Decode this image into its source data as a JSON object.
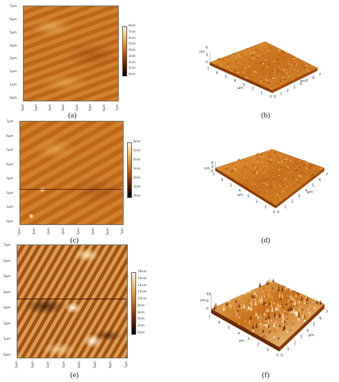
{
  "panels": {
    "a": {
      "caption": "(a)",
      "y_ticks": [
        "7μm",
        "6μm",
        "5μm",
        "4μm",
        "3μm",
        "2μm",
        "1μm",
        "0μm"
      ],
      "x_ticks": [
        "0μm",
        "1μm",
        "2μm",
        "3μm",
        "4μm",
        "5μm",
        "6μm",
        "7μm"
      ],
      "colorbar": [
        "8nm",
        "7nm",
        "6nm",
        "5nm",
        "4nm",
        "3nm",
        "2nm",
        "1nm",
        "0nm"
      ]
    },
    "b": {
      "caption": "(b)",
      "z_label": "nm",
      "z_ticks": [
        "6",
        "3",
        "0"
      ],
      "left_axis_label": "μm",
      "left_axis_ticks": [
        "0",
        "1",
        "2",
        "3",
        "4",
        "5",
        "6",
        "7"
      ],
      "right_axis_label": "μm",
      "right_axis_ticks": [
        "0",
        "1",
        "2",
        "3",
        "4",
        "5",
        "6",
        "7"
      ]
    },
    "c": {
      "caption": "(c)",
      "y_ticks": [
        "7μm",
        "6μm",
        "5μm",
        "4μm",
        "3μm",
        "2μm",
        "1μm",
        "0μm"
      ],
      "x_ticks": [
        "0μm",
        "1μm",
        "2μm",
        "3μm",
        "4μm",
        "5μm",
        "6μm",
        "7μm"
      ],
      "colorbar": [
        "6nm",
        "5nm",
        "4nm",
        "3nm",
        "2nm",
        "1nm",
        "0nm"
      ]
    },
    "d": {
      "caption": "(d)",
      "z_label": "nm",
      "z_ticks": [
        "6",
        "3",
        "0"
      ],
      "left_axis_label": "μm",
      "left_axis_ticks": [
        "0",
        "1",
        "2",
        "3",
        "4",
        "5",
        "6",
        "7"
      ],
      "right_axis_label": "μm",
      "right_axis_ticks": [
        "0",
        "1",
        "2",
        "3",
        "4",
        "5",
        "6",
        "7"
      ]
    },
    "e": {
      "caption": "(e)",
      "y_ticks": [
        "7μm",
        "6μm",
        "5μm",
        "4μm",
        "3μm",
        "2μm",
        "1μm",
        "0μm"
      ],
      "x_ticks": [
        "0μm",
        "1μm",
        "2μm",
        "3μm",
        "4μm",
        "5μm",
        "6μm",
        "7μm"
      ],
      "colorbar": [
        "18nm",
        "16nm",
        "14nm",
        "12nm",
        "10nm",
        "8nm",
        "6nm",
        "4nm",
        "2nm",
        "0nm"
      ]
    },
    "f": {
      "caption": "(f)",
      "z_label": "nm",
      "z_ticks": [
        "19",
        "9",
        "0"
      ],
      "left_axis_label": "μm",
      "left_axis_ticks": [
        "0",
        "1",
        "2",
        "3",
        "4",
        "5",
        "6",
        "7"
      ],
      "right_axis_label": "μm",
      "right_axis_ticks": [
        "0",
        "1",
        "2",
        "3",
        "4",
        "5",
        "6",
        "7"
      ]
    }
  },
  "colors": {
    "afm_dark": "#3a0e00",
    "afm_mid": "#c8701c",
    "afm_light": "#f4c06a",
    "afm_white": "#fff6dc"
  }
}
